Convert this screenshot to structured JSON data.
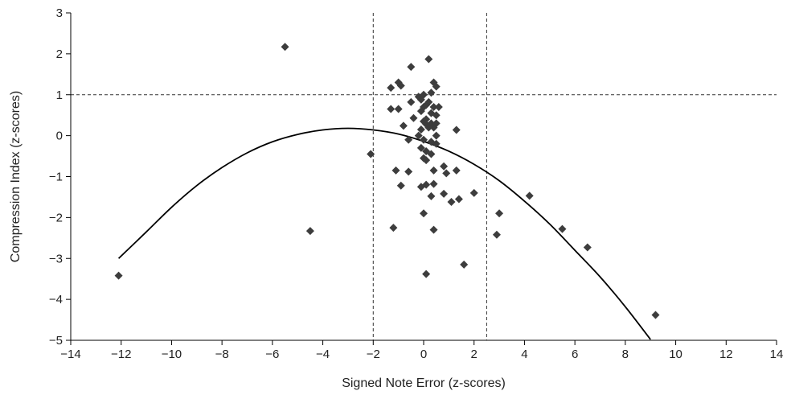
{
  "chart_data": {
    "type": "scatter",
    "title": "",
    "xlabel": "Signed Note Error (z-scores)",
    "ylabel": "Compression Index (z-scores)",
    "xlim": [
      -14,
      14
    ],
    "ylim": [
      -5,
      3
    ],
    "xticks": [
      -14,
      -12,
      -10,
      -8,
      -6,
      -4,
      -2,
      0,
      2,
      4,
      6,
      8,
      10,
      12,
      14
    ],
    "yticks": [
      -5,
      -4,
      -3,
      -2,
      -1,
      0,
      1,
      2,
      3
    ],
    "xtick_labels": [
      "−14",
      "−12",
      "−10",
      "−8",
      "−6",
      "−4",
      "−2",
      "0",
      "2",
      "4",
      "6",
      "8",
      "10",
      "12",
      "14"
    ],
    "ytick_labels": [
      "−5",
      "−4",
      "−3",
      "−2",
      "−1",
      "0",
      "1",
      "2",
      "3"
    ],
    "grid": false,
    "legend": "none",
    "marker": "diamond",
    "marker_color": "#3d3d3d",
    "reference_lines": {
      "vertical": [
        -2.0,
        2.5
      ],
      "horizontal": [
        1.0
      ],
      "style": "dashed"
    },
    "points": [
      [
        -12.1,
        -3.42
      ],
      [
        -5.5,
        2.17
      ],
      [
        -4.5,
        -2.33
      ],
      [
        -2.1,
        -0.45
      ],
      [
        -1.3,
        1.17
      ],
      [
        -1.0,
        1.3
      ],
      [
        -0.9,
        1.22
      ],
      [
        -1.3,
        0.65
      ],
      [
        -1.0,
        0.65
      ],
      [
        -0.5,
        1.68
      ],
      [
        0.2,
        1.87
      ],
      [
        -0.8,
        0.24
      ],
      [
        -0.9,
        -1.22
      ],
      [
        -1.1,
        -0.85
      ],
      [
        -0.6,
        -0.88
      ],
      [
        -0.5,
        0.82
      ],
      [
        -0.6,
        -0.1
      ],
      [
        -0.4,
        0.43
      ],
      [
        -1.2,
        -2.25
      ],
      [
        -0.2,
        0.95
      ],
      [
        -0.1,
        0.88
      ],
      [
        0.0,
        1.0
      ],
      [
        0.0,
        0.7
      ],
      [
        -0.1,
        0.6
      ],
      [
        0.1,
        0.75
      ],
      [
        0.3,
        1.05
      ],
      [
        0.4,
        1.3
      ],
      [
        0.5,
        1.2
      ],
      [
        0.2,
        0.82
      ],
      [
        0.3,
        0.55
      ],
      [
        0.4,
        0.7
      ],
      [
        0.6,
        0.7
      ],
      [
        0.5,
        0.5
      ],
      [
        0.3,
        0.3
      ],
      [
        0.4,
        0.2
      ],
      [
        0.2,
        0.2
      ],
      [
        0.1,
        0.4
      ],
      [
        0.0,
        0.35
      ],
      [
        0.1,
        0.28
      ],
      [
        0.5,
        0.3
      ],
      [
        0.5,
        0.0
      ],
      [
        -0.1,
        0.15
      ],
      [
        -0.2,
        0.0
      ],
      [
        0.0,
        -0.1
      ],
      [
        0.3,
        -0.15
      ],
      [
        0.5,
        -0.2
      ],
      [
        -0.1,
        -0.3
      ],
      [
        0.1,
        -0.38
      ],
      [
        0.3,
        -0.45
      ],
      [
        0.0,
        -0.55
      ],
      [
        0.1,
        -0.6
      ],
      [
        0.4,
        -0.85
      ],
      [
        0.8,
        -0.75
      ],
      [
        0.9,
        -0.92
      ],
      [
        1.3,
        -0.85
      ],
      [
        1.3,
        0.14
      ],
      [
        -0.1,
        -1.25
      ],
      [
        0.1,
        -1.2
      ],
      [
        0.3,
        -1.48
      ],
      [
        0.4,
        -1.18
      ],
      [
        0.8,
        -1.42
      ],
      [
        1.1,
        -1.62
      ],
      [
        1.4,
        -1.55
      ],
      [
        2.0,
        -1.4
      ],
      [
        0.0,
        -1.9
      ],
      [
        0.4,
        -2.3
      ],
      [
        1.6,
        -3.15
      ],
      [
        0.1,
        -3.38
      ],
      [
        2.9,
        -2.42
      ],
      [
        3.0,
        -1.9
      ],
      [
        4.2,
        -1.47
      ],
      [
        5.5,
        -2.28
      ],
      [
        6.5,
        -2.73
      ],
      [
        9.2,
        -4.38
      ]
    ],
    "trendline": {
      "type": "polynomial",
      "x_range": [
        -12.1,
        9.0
      ],
      "points": [
        [
          -12.1,
          -3.0
        ],
        [
          -11.0,
          -2.35
        ],
        [
          -10.0,
          -1.75
        ],
        [
          -9.0,
          -1.22
        ],
        [
          -8.0,
          -0.78
        ],
        [
          -7.0,
          -0.42
        ],
        [
          -6.0,
          -0.15
        ],
        [
          -5.0,
          0.03
        ],
        [
          -4.0,
          0.14
        ],
        [
          -3.0,
          0.18
        ],
        [
          -2.0,
          0.14
        ],
        [
          -1.0,
          0.04
        ],
        [
          0.0,
          -0.14
        ],
        [
          1.0,
          -0.38
        ],
        [
          2.0,
          -0.7
        ],
        [
          3.0,
          -1.1
        ],
        [
          4.0,
          -1.6
        ],
        [
          5.0,
          -2.16
        ],
        [
          6.0,
          -2.8
        ],
        [
          7.0,
          -3.45
        ],
        [
          8.0,
          -4.18
        ],
        [
          9.0,
          -4.98
        ]
      ]
    }
  }
}
